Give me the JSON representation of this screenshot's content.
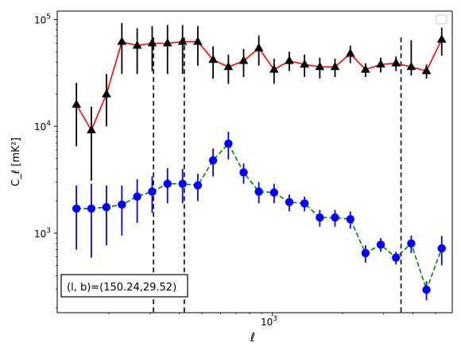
{
  "chart_data": {
    "type": "line",
    "xlabel": "ℓ",
    "ylabel": "C_ℓ  [mK²]",
    "x_scale": "log",
    "y_scale": "log",
    "xlim": [
      120,
      5900
    ],
    "ylim": [
      180,
      120000
    ],
    "x_ticks": [
      {
        "value": 1000,
        "label": "10",
        "exp": "3"
      }
    ],
    "y_ticks": [
      {
        "value": 1000,
        "label": "10",
        "exp": "3"
      },
      {
        "value": 10000,
        "label": "10",
        "exp": "4"
      },
      {
        "value": 100000,
        "label": "10",
        "exp": "5"
      }
    ],
    "annotation": "(l, b)=(150.24,29.52)",
    "legend": "top-right (empty)",
    "vlines": [
      310,
      420,
      3560
    ],
    "series": [
      {
        "marker": "triangle",
        "line_color": "#ff0000",
        "line_style": "solid",
        "marker_color": "#000000",
        "errorbar_color": "#000000",
        "x": [
          145,
          168,
          195,
          227,
          264,
          306,
          356,
          413,
          480,
          558,
          649,
          754,
          876,
          1018,
          1183,
          1375,
          1598,
          1857,
          2159,
          2508,
          2915,
          3388,
          3937,
          4576,
          5318
        ],
        "y": [
          16000,
          9200,
          20000,
          62000,
          57000,
          60000,
          60000,
          62000,
          62000,
          42000,
          36000,
          41000,
          54000,
          34000,
          41000,
          38000,
          36000,
          36000,
          48000,
          34000,
          38000,
          39000,
          36000,
          33000,
          65000
        ],
        "yerr_low": [
          9500,
          6100,
          10000,
          31000,
          26000,
          27000,
          29000,
          31000,
          25000,
          14000,
          11000,
          12000,
          17000,
          9000,
          8000,
          9000,
          8000,
          7000,
          9000,
          5000,
          6000,
          6000,
          6000,
          5000,
          19000
        ],
        "yerr_high": [
          9500,
          6100,
          11000,
          31000,
          26000,
          27000,
          29000,
          27000,
          25000,
          14000,
          11000,
          12000,
          17000,
          9000,
          9000,
          9000,
          8000,
          7000,
          9000,
          5000,
          6000,
          6000,
          28000,
          5000,
          19000
        ]
      },
      {
        "marker": "circle",
        "line_color": "#008000",
        "line_style": "dashed",
        "marker_color": "#0000ff",
        "errorbar_color": "#0000ff",
        "x": [
          145,
          168,
          195,
          227,
          264,
          306,
          356,
          413,
          480,
          558,
          649,
          754,
          876,
          1018,
          1183,
          1375,
          1598,
          1857,
          2159,
          2508,
          2915,
          3388,
          3937,
          4576,
          5318
        ],
        "y": [
          1700,
          1700,
          1750,
          1850,
          2200,
          2450,
          2900,
          2900,
          2800,
          4800,
          6900,
          3700,
          2450,
          2400,
          1950,
          1900,
          1400,
          1400,
          1350,
          650,
          780,
          590,
          800,
          295,
          720
        ],
        "yerr_low": [
          1000,
          1110,
          980,
          900,
          950,
          900,
          1000,
          1000,
          800,
          1400,
          2000,
          800,
          550,
          500,
          350,
          300,
          250,
          250,
          250,
          120,
          110,
          80,
          150,
          60,
          220
        ],
        "yerr_high": [
          1100,
          1200,
          1050,
          950,
          1000,
          950,
          1150,
          1100,
          800,
          1400,
          2000,
          800,
          550,
          500,
          350,
          300,
          250,
          250,
          250,
          120,
          120,
          80,
          150,
          60,
          220
        ]
      }
    ]
  }
}
